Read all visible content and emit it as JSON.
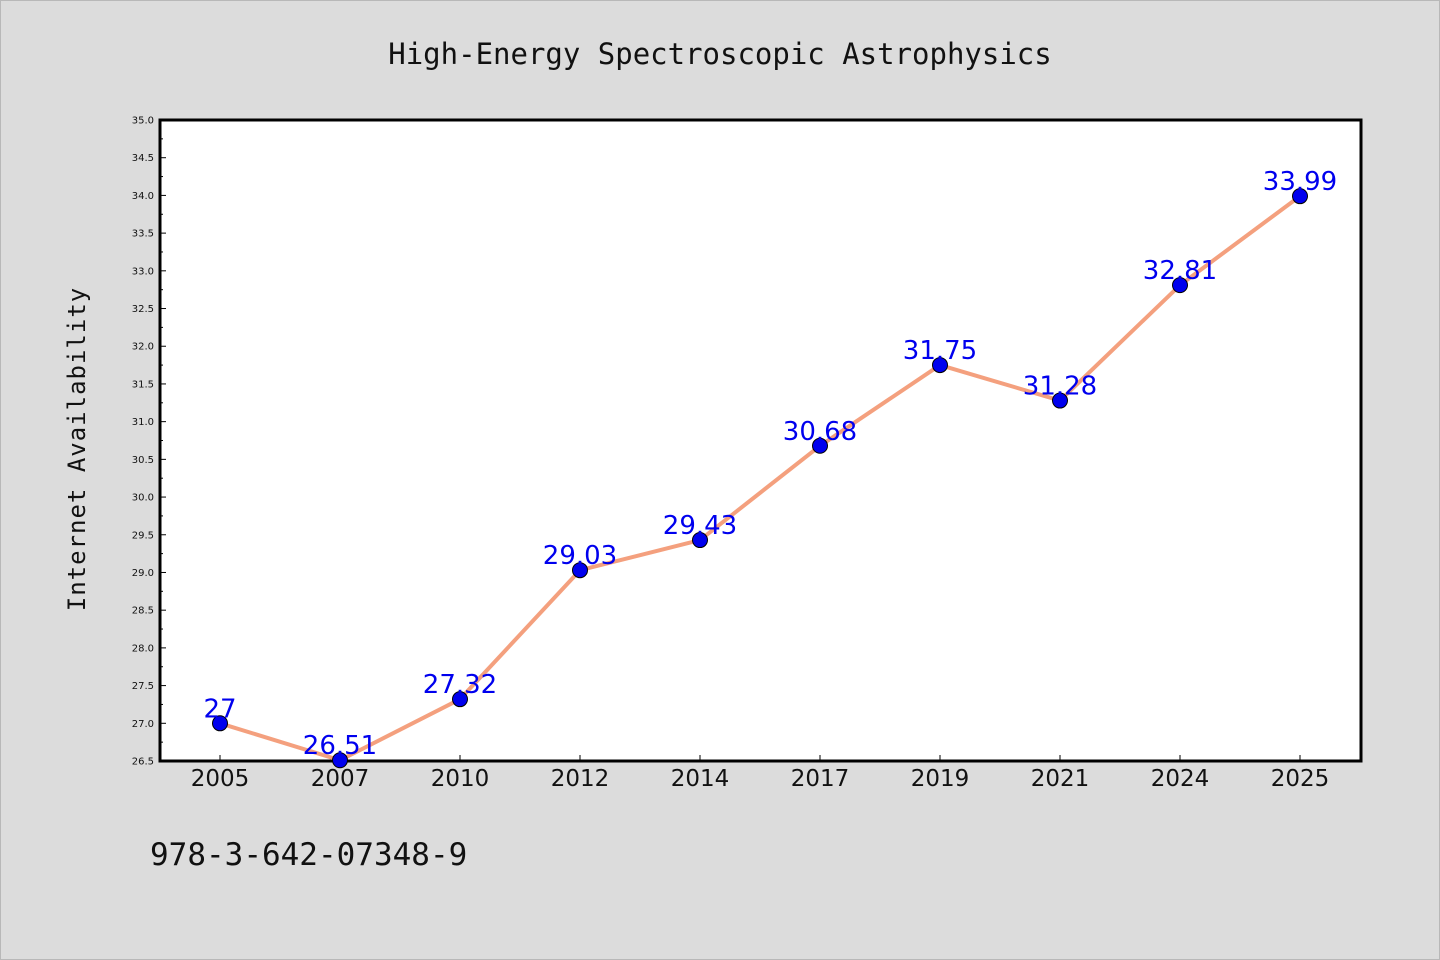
{
  "colors": {
    "background": "#dcdcdc",
    "plot_background": "#ffffff",
    "line": "#f4a07e",
    "marker": "#0000ee",
    "data_label": "#0000ee",
    "axis": "#000000"
  },
  "footnote": "978-3-642-07348-9",
  "chart_data": {
    "type": "line",
    "title": "High-Energy Spectroscopic Astrophysics",
    "xlabel": "",
    "ylabel": "Internet Availability",
    "categories": [
      "2005",
      "2007",
      "2010",
      "2012",
      "2014",
      "2017",
      "2019",
      "2021",
      "2024",
      "2025"
    ],
    "series": [
      {
        "values": [
          27,
          26.51,
          27.32,
          29.03,
          29.43,
          30.68,
          31.75,
          31.28,
          32.81,
          33.99
        ],
        "data_labels": [
          "27",
          "26.51",
          "27.32",
          "29.03",
          "29.43",
          "30.68",
          "31.75",
          "31.28",
          "32.81",
          "33.99"
        ]
      }
    ],
    "ylim": [
      26.5,
      35.0
    ],
    "yticks": [
      "26.5",
      "27.0",
      "27.5",
      "28.0",
      "28.5",
      "29.0",
      "29.5",
      "30.0",
      "30.5",
      "31.0",
      "31.5",
      "32.0",
      "32.5",
      "33.0",
      "33.5",
      "34.0",
      "34.5",
      "35.0"
    ],
    "grid": false,
    "legend": "none"
  }
}
